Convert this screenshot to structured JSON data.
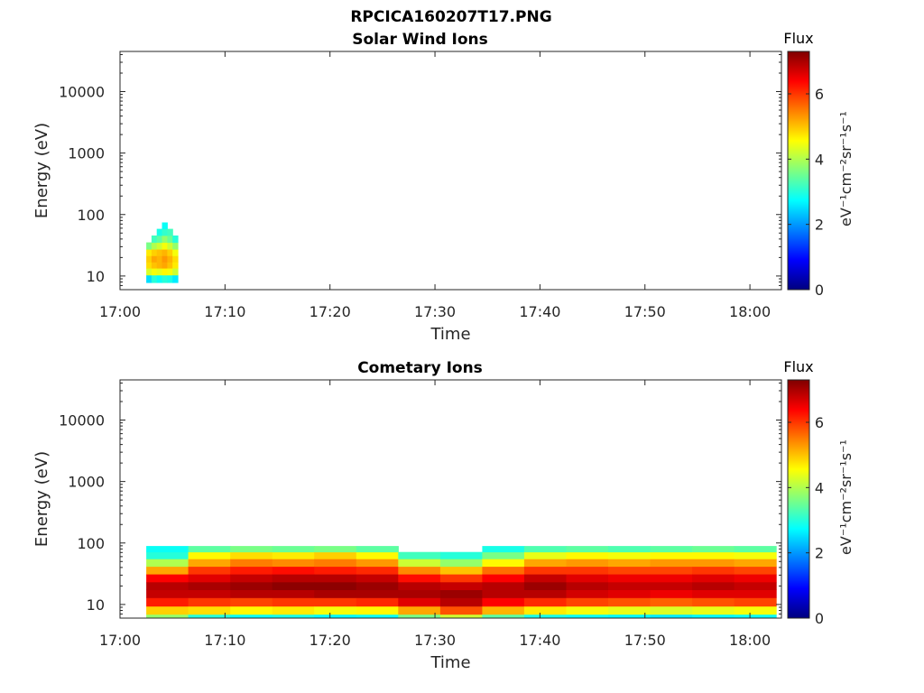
{
  "figure": {
    "title": "RPCICA160207T17.PNG"
  },
  "chart_data": [
    {
      "type": "heatmap",
      "title": "Solar Wind Ions",
      "xlabel": "Time",
      "ylabel": "Energy (eV)",
      "x_ticks": [
        "17:00",
        "17:10",
        "17:20",
        "17:30",
        "17:40",
        "17:50",
        "18:00"
      ],
      "x_range_minutes": [
        0,
        63
      ],
      "y_scale": "log",
      "y_ticks": [
        "10",
        "100",
        "1000",
        "10000"
      ],
      "y_range_ev": [
        6,
        45000
      ],
      "colorbar": {
        "label": "Flux",
        "units": "eV⁻¹cm⁻²sr⁻¹s⁻¹",
        "ticks": [
          "0",
          "2",
          "4",
          "6"
        ],
        "range": [
          0,
          7.3
        ]
      },
      "colormap": "jet",
      "grid": false,
      "time_bins_minutes": [
        2.5,
        3.0,
        3.5,
        4.0,
        4.5,
        5.0
      ],
      "energy_levels_ev": [
        9,
        12,
        15,
        19,
        24,
        31,
        40,
        52,
        66
      ],
      "flux": [
        [
          2.5,
          4.3,
          4.8,
          4.9,
          4.7,
          3.6,
          0,
          0,
          0
        ],
        [
          3.0,
          4.5,
          5.0,
          5.2,
          4.9,
          4.0,
          3.2,
          0,
          0
        ],
        [
          2.8,
          4.4,
          5.1,
          5.1,
          5.0,
          4.2,
          3.4,
          2.9,
          0
        ],
        [
          3.0,
          4.6,
          5.2,
          5.3,
          5.1,
          4.5,
          3.8,
          3.1,
          2.8
        ],
        [
          2.9,
          4.5,
          5.0,
          5.1,
          4.9,
          4.2,
          3.5,
          3.2,
          0
        ],
        [
          2.6,
          4.2,
          4.7,
          4.8,
          4.5,
          3.8,
          3.0,
          0,
          0
        ]
      ]
    },
    {
      "type": "heatmap",
      "title": "Cometary Ions",
      "xlabel": "Time",
      "ylabel": "Energy (eV)",
      "x_ticks": [
        "17:00",
        "17:10",
        "17:20",
        "17:30",
        "17:40",
        "17:50",
        "18:00"
      ],
      "x_range_minutes": [
        0,
        63
      ],
      "y_scale": "log",
      "y_ticks": [
        "10",
        "100",
        "1000",
        "10000"
      ],
      "y_range_ev": [
        6,
        45000
      ],
      "colorbar": {
        "label": "Flux",
        "units": "eV⁻¹cm⁻²sr⁻¹s⁻¹",
        "ticks": [
          "0",
          "2",
          "4",
          "6"
        ],
        "range": [
          0,
          7.3
        ]
      },
      "colormap": "jet",
      "grid": false,
      "time_bins_minutes": [
        2.5,
        6.5,
        10.5,
        14.5,
        18.5,
        22.5,
        26.5,
        30.5,
        34.5,
        38.5,
        42.5,
        46.5,
        50.5,
        54.5,
        58.5
      ],
      "energy_levels_ev": [
        6,
        8,
        11,
        15,
        20,
        27,
        36,
        48,
        64,
        80
      ],
      "flux": [
        [
          3.8,
          4.9,
          6.2,
          6.8,
          6.9,
          6.4,
          5.2,
          4.0,
          3.0,
          2.8
        ],
        [
          3.0,
          4.8,
          6.0,
          6.8,
          7.0,
          6.6,
          6.0,
          5.2,
          4.6,
          3.4
        ],
        [
          2.8,
          4.6,
          5.9,
          6.9,
          7.1,
          6.8,
          6.2,
          5.5,
          4.8,
          3.6
        ],
        [
          2.9,
          4.7,
          6.0,
          6.9,
          7.2,
          6.9,
          6.3,
          5.4,
          4.7,
          3.5
        ],
        [
          2.7,
          4.5,
          6.0,
          7.0,
          7.2,
          6.9,
          6.2,
          5.5,
          4.9,
          3.6
        ],
        [
          2.8,
          4.6,
          6.1,
          7.0,
          7.1,
          6.8,
          6.1,
          5.3,
          4.6,
          3.4
        ],
        [
          3.6,
          5.2,
          6.6,
          7.0,
          6.9,
          6.3,
          5.4,
          4.2,
          3.2,
          0
        ],
        [
          4.2,
          5.8,
          6.9,
          7.1,
          6.8,
          6.0,
          5.0,
          3.8,
          3.0,
          0
        ],
        [
          3.4,
          5.1,
          6.4,
          6.9,
          6.9,
          6.4,
          5.6,
          4.6,
          3.6,
          2.9
        ],
        [
          2.9,
          4.7,
          6.1,
          6.9,
          7.1,
          6.8,
          6.0,
          5.2,
          4.4,
          3.3
        ],
        [
          2.8,
          4.5,
          5.9,
          6.7,
          6.9,
          6.6,
          6.0,
          5.3,
          4.6,
          3.4
        ],
        [
          2.7,
          4.4,
          5.8,
          6.6,
          6.8,
          6.5,
          5.9,
          5.2,
          4.5,
          3.3
        ],
        [
          2.6,
          4.3,
          5.7,
          6.5,
          6.8,
          6.5,
          5.9,
          5.3,
          4.6,
          3.4
        ],
        [
          2.7,
          4.4,
          5.8,
          6.6,
          6.9,
          6.6,
          6.0,
          5.3,
          4.6,
          3.5
        ],
        [
          2.8,
          4.5,
          5.9,
          6.6,
          6.8,
          6.5,
          5.9,
          5.2,
          4.5,
          3.4
        ]
      ]
    }
  ]
}
